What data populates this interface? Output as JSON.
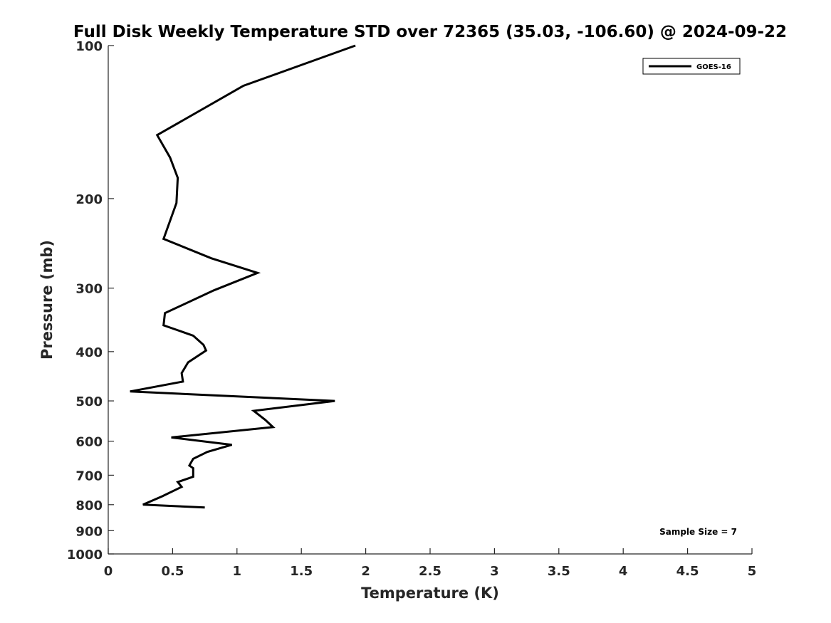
{
  "chart_data": {
    "type": "line",
    "title": "Full Disk Weekly Temperature STD over 72365 (35.03, -106.60) @ 2024-09-22",
    "xlabel": "Temperature (K)",
    "ylabel": "Pressure (mb)",
    "xlim": [
      0,
      5
    ],
    "ylim": [
      1000,
      100
    ],
    "y_scale": "log",
    "y_reversed": true,
    "x_ticks": [
      0,
      0.5,
      1,
      1.5,
      2,
      2.5,
      3,
      3.5,
      4,
      4.5,
      5
    ],
    "x_tick_labels": [
      "0",
      "0.5",
      "1",
      "1.5",
      "2",
      "2.5",
      "3",
      "3.5",
      "4",
      "4.5",
      "5"
    ],
    "y_ticks": [
      100,
      200,
      300,
      400,
      500,
      600,
      700,
      800,
      900,
      1000
    ],
    "y_tick_labels": [
      "100",
      "200",
      "300",
      "400",
      "500",
      "600",
      "700",
      "800",
      "900",
      "1000"
    ],
    "grid": false,
    "legend_position": "top-right",
    "series": [
      {
        "name": "GOES-16",
        "color": "#000000",
        "points": [
          [
            1.92,
            100
          ],
          [
            1.05,
            120
          ],
          [
            0.38,
            150
          ],
          [
            0.48,
            166
          ],
          [
            0.54,
            182
          ],
          [
            0.53,
            204
          ],
          [
            0.43,
            240
          ],
          [
            0.8,
            262
          ],
          [
            1.16,
            280
          ],
          [
            0.82,
            303
          ],
          [
            0.44,
            336
          ],
          [
            0.43,
            355
          ],
          [
            0.66,
            372
          ],
          [
            0.74,
            388
          ],
          [
            0.76,
            398
          ],
          [
            0.62,
            420
          ],
          [
            0.57,
            441
          ],
          [
            0.58,
            458
          ],
          [
            0.17,
            479
          ],
          [
            1.76,
            500
          ],
          [
            1.13,
            523
          ],
          [
            1.22,
            545
          ],
          [
            1.28,
            563
          ],
          [
            0.49,
            590
          ],
          [
            0.96,
            610
          ],
          [
            0.77,
            630
          ],
          [
            0.66,
            650
          ],
          [
            0.63,
            670
          ],
          [
            0.66,
            678
          ],
          [
            0.66,
            705
          ],
          [
            0.54,
            722
          ],
          [
            0.57,
            738
          ],
          [
            0.42,
            770
          ],
          [
            0.27,
            800
          ],
          [
            0.75,
            810
          ]
        ]
      }
    ],
    "annotations": [
      "Sample Size = 7"
    ]
  }
}
